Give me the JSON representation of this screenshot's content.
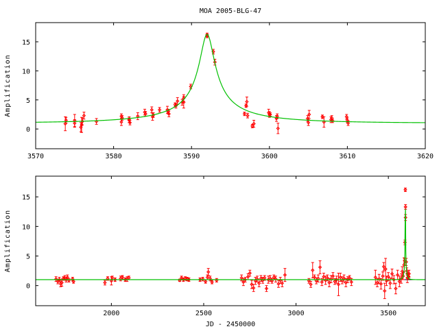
{
  "colors": {
    "data": "#ff0000",
    "model": "#00c000",
    "axis": "#000000",
    "baseline": "#000000"
  },
  "chart_data": [
    {
      "type": "scatter",
      "title": "MOA 2005-BLG-47",
      "xlabel": "",
      "ylabel": "Amplification",
      "xlim": [
        3570,
        3620
      ],
      "ylim": [
        -3.4,
        18.3
      ],
      "xticks": [
        3570,
        3580,
        3590,
        3600,
        3610,
        3620
      ],
      "yticks": [
        0,
        5,
        10,
        15
      ],
      "grid": false,
      "model": {
        "type": "paczynski",
        "t0": 3592,
        "u0": 0.0615,
        "tE": 15.8,
        "baseline": 1.0
      },
      "points_format": [
        "x",
        "y",
        "err"
      ],
      "points": [
        [
          3573.8,
          0.9,
          1.2
        ],
        [
          3573.9,
          1.5,
          0.5
        ],
        [
          3575.0,
          1.0,
          0.6
        ],
        [
          3575.0,
          1.4,
          1.1
        ],
        [
          3575.8,
          0.3,
          0.8
        ],
        [
          3575.9,
          0.7,
          1.3
        ],
        [
          3576.0,
          1.3,
          0.6
        ],
        [
          3576.2,
          2.3,
          0.6
        ],
        [
          3577.8,
          1.3,
          0.5
        ],
        [
          3581.0,
          2.2,
          0.4
        ],
        [
          3581.0,
          1.2,
          0.6
        ],
        [
          3581.1,
          1.9,
          0.4
        ],
        [
          3582.0,
          1.6,
          0.5
        ],
        [
          3582.1,
          1.1,
          0.4
        ],
        [
          3582.0,
          1.5,
          0.4
        ],
        [
          3583.1,
          2.2,
          0.6
        ],
        [
          3584.0,
          2.9,
          0.5
        ],
        [
          3584.1,
          2.6,
          0.4
        ],
        [
          3584.9,
          3.3,
          0.5
        ],
        [
          3585.0,
          2.1,
          0.6
        ],
        [
          3585.1,
          2.4,
          0.4
        ],
        [
          3585.9,
          3.3,
          0.4
        ],
        [
          3586.9,
          3.3,
          0.6
        ],
        [
          3587.0,
          3.0,
          0.4
        ],
        [
          3587.1,
          2.6,
          0.5
        ],
        [
          3587.9,
          4.2,
          0.3
        ],
        [
          3588.0,
          4.0,
          0.4
        ],
        [
          3588.2,
          4.8,
          0.6
        ],
        [
          3588.8,
          4.6,
          0.5
        ],
        [
          3589.0,
          5.3,
          0.6
        ],
        [
          3589.0,
          4.6,
          1.0
        ],
        [
          3589.9,
          7.3,
          0.4
        ],
        [
          3592.0,
          16.2,
          0.3
        ],
        [
          3592.0,
          16.0,
          0.3
        ],
        [
          3592.8,
          13.3,
          0.4
        ],
        [
          3593.0,
          11.5,
          0.5
        ],
        [
          3596.8,
          2.6,
          0.3
        ],
        [
          3597.0,
          4.0,
          0.3
        ],
        [
          3597.1,
          4.7,
          0.8
        ],
        [
          3597.2,
          2.3,
          0.4
        ],
        [
          3597.8,
          0.5,
          0.3
        ],
        [
          3598.0,
          0.9,
          0.6
        ],
        [
          3599.9,
          2.8,
          0.6
        ],
        [
          3600.0,
          2.5,
          0.5
        ],
        [
          3600.1,
          2.5,
          0.3
        ],
        [
          3600.9,
          1.8,
          0.5
        ],
        [
          3601.0,
          2.2,
          0.4
        ],
        [
          3601.1,
          0.1,
          0.9
        ],
        [
          3604.9,
          1.8,
          0.5
        ],
        [
          3605.0,
          1.1,
          0.5
        ],
        [
          3605.1,
          2.5,
          0.7
        ],
        [
          3606.8,
          2.1,
          0.3
        ],
        [
          3607.0,
          1.2,
          0.9
        ],
        [
          3607.9,
          1.6,
          0.5
        ],
        [
          3608.0,
          1.9,
          0.4
        ],
        [
          3608.1,
          1.4,
          0.3
        ],
        [
          3609.9,
          2.1,
          0.4
        ],
        [
          3610.0,
          1.5,
          0.4
        ],
        [
          3610.1,
          1.0,
          0.4
        ]
      ]
    },
    {
      "type": "scatter",
      "title": "",
      "xlabel": "JD - 2450000",
      "ylabel": "Amplification",
      "xlim": [
        1590,
        3700
      ],
      "ylim": [
        -3.4,
        18.5
      ],
      "xticks": [
        2000,
        2500,
        3000,
        3500
      ],
      "yticks": [
        0,
        5,
        10,
        15
      ],
      "grid": false,
      "baseline_line": 1.0,
      "model": {
        "type": "paczynski",
        "t0": 3592,
        "u0": 0.0615,
        "tE": 15.8,
        "baseline": 1.0
      },
      "points_format": [
        "x",
        "y",
        "err"
      ],
      "points": [
        [
          1700,
          1.1,
          0.4
        ],
        [
          1710,
          0.7,
          0.4
        ],
        [
          1718,
          1.0,
          0.4
        ],
        [
          1725,
          0.3,
          0.5
        ],
        [
          1732,
          0.5,
          0.6
        ],
        [
          1740,
          1.2,
          0.3
        ],
        [
          1748,
          1.3,
          0.4
        ],
        [
          1755,
          1.0,
          0.4
        ],
        [
          1762,
          1.4,
          0.4
        ],
        [
          1770,
          0.9,
          0.3
        ],
        [
          1790,
          1.1,
          0.3
        ],
        [
          1795,
          0.7,
          0.3
        ],
        [
          1965,
          0.5,
          0.4
        ],
        [
          1980,
          1.2,
          0.3
        ],
        [
          2000,
          0.8,
          0.7
        ],
        [
          2005,
          1.3,
          0.3
        ],
        [
          2020,
          1.0,
          0.3
        ],
        [
          2050,
          1.2,
          0.4
        ],
        [
          2060,
          1.4,
          0.3
        ],
        [
          2075,
          1.0,
          0.3
        ],
        [
          2085,
          1.1,
          0.4
        ],
        [
          2095,
          1.3,
          0.3
        ],
        [
          2370,
          0.9,
          0.2
        ],
        [
          2380,
          1.3,
          0.3
        ],
        [
          2390,
          1.0,
          0.3
        ],
        [
          2400,
          1.2,
          0.3
        ],
        [
          2410,
          1.1,
          0.3
        ],
        [
          2420,
          1.0,
          0.3
        ],
        [
          2480,
          1.0,
          0.3
        ],
        [
          2495,
          1.1,
          0.3
        ],
        [
          2510,
          0.7,
          0.3
        ],
        [
          2520,
          1.4,
          0.4
        ],
        [
          2525,
          2.3,
          0.6
        ],
        [
          2535,
          1.2,
          0.4
        ],
        [
          2545,
          0.6,
          0.3
        ],
        [
          2570,
          0.9,
          0.3
        ],
        [
          2705,
          1.3,
          0.5
        ],
        [
          2715,
          0.6,
          0.6
        ],
        [
          2725,
          1.0,
          0.4
        ],
        [
          2740,
          1.5,
          0.5
        ],
        [
          2750,
          2.1,
          0.5
        ],
        [
          2760,
          0.2,
          0.7
        ],
        [
          2770,
          -0.4,
          0.6
        ],
        [
          2780,
          0.8,
          0.6
        ],
        [
          2790,
          1.1,
          0.5
        ],
        [
          2800,
          0.4,
          0.6
        ],
        [
          2810,
          1.2,
          0.5
        ],
        [
          2820,
          0.9,
          0.5
        ],
        [
          2830,
          1.3,
          0.4
        ],
        [
          2840,
          -0.5,
          0.5
        ],
        [
          2850,
          1.0,
          0.6
        ],
        [
          2860,
          1.2,
          0.5
        ],
        [
          2870,
          0.8,
          0.4
        ],
        [
          2880,
          1.4,
          0.4
        ],
        [
          2890,
          1.1,
          0.5
        ],
        [
          2905,
          0.3,
          0.6
        ],
        [
          2915,
          0.9,
          0.5
        ],
        [
          2925,
          0.4,
          0.6
        ],
        [
          2940,
          1.8,
          1.1
        ],
        [
          3070,
          0.8,
          0.4
        ],
        [
          3080,
          0.2,
          0.5
        ],
        [
          3090,
          2.6,
          1.3
        ],
        [
          3100,
          1.4,
          0.4
        ],
        [
          3110,
          0.8,
          0.5
        ],
        [
          3120,
          1.2,
          0.6
        ],
        [
          3130,
          3.1,
          1.1
        ],
        [
          3140,
          0.6,
          0.6
        ],
        [
          3150,
          1.5,
          0.6
        ],
        [
          3160,
          0.9,
          0.7
        ],
        [
          3170,
          1.3,
          0.5
        ],
        [
          3180,
          0.5,
          0.7
        ],
        [
          3190,
          1.1,
          0.6
        ],
        [
          3200,
          1.6,
          0.6
        ],
        [
          3210,
          0.7,
          0.5
        ],
        [
          3220,
          1.0,
          0.6
        ],
        [
          3230,
          0.2,
          1.9
        ],
        [
          3240,
          1.4,
          0.7
        ],
        [
          3250,
          0.9,
          0.6
        ],
        [
          3260,
          1.2,
          0.6
        ],
        [
          3270,
          0.5,
          0.7
        ],
        [
          3280,
          1.0,
          0.5
        ],
        [
          3290,
          1.3,
          0.4
        ],
        [
          3300,
          0.6,
          0.6
        ],
        [
          3430,
          1.4,
          1.2
        ],
        [
          3440,
          0.5,
          0.7
        ],
        [
          3450,
          1.1,
          0.8
        ],
        [
          3460,
          0.3,
          0.9
        ],
        [
          3470,
          1.6,
          0.7
        ],
        [
          3475,
          3.2,
          0.7
        ],
        [
          3480,
          -0.9,
          1.3
        ],
        [
          3485,
          2.8,
          1.8
        ],
        [
          3490,
          0.8,
          0.8
        ],
        [
          3500,
          1.5,
          0.7
        ],
        [
          3510,
          0.4,
          0.9
        ],
        [
          3520,
          2.0,
          0.8
        ],
        [
          3530,
          1.0,
          0.7
        ],
        [
          3540,
          -0.5,
          0.9
        ],
        [
          3550,
          1.8,
          0.8
        ],
        [
          3560,
          0.7,
          0.9
        ],
        [
          3570,
          1.2,
          0.8
        ],
        [
          3575,
          2.4,
          0.8
        ],
        [
          3580,
          1.6,
          0.6
        ],
        [
          3585,
          3.5,
          1.2
        ],
        [
          3588,
          4.2,
          0.4
        ],
        [
          3590,
          7.3,
          0.4
        ],
        [
          3592,
          16.2,
          0.3
        ],
        [
          3593,
          13.3,
          0.4
        ],
        [
          3593,
          11.5,
          0.5
        ],
        [
          3597,
          4.0,
          0.6
        ],
        [
          3600,
          2.5,
          0.5
        ],
        [
          3603,
          1.3,
          0.8
        ],
        [
          3605,
          1.8,
          0.5
        ],
        [
          3608,
          1.6,
          0.5
        ],
        [
          3610,
          1.5,
          0.4
        ],
        [
          3612,
          2.0,
          0.6
        ]
      ]
    }
  ]
}
